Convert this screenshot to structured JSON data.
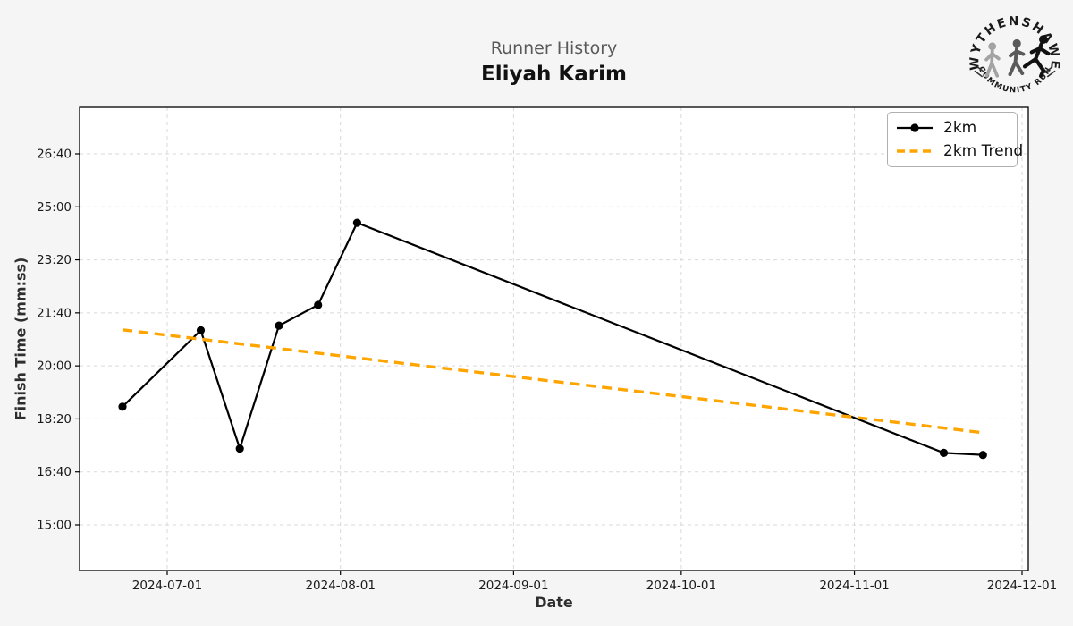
{
  "header": {
    "title": "Runner History",
    "subtitle": "Eliyah Karim"
  },
  "logo": {
    "top_text": "WYTHENSHAWE",
    "bottom_text": "COMMUNITY RUN"
  },
  "colors": {
    "figure_background": "#f5f5f5",
    "plot_background": "#ffffff",
    "gridline": "#d9d9d9",
    "axis": "#000000",
    "series_2km": "#000000",
    "trend": "#FFA500",
    "title_gray": "#595959",
    "text_dark": "#111111"
  },
  "chart_data": {
    "type": "line",
    "title": "Runner History",
    "subtitle": "Eliyah Karim",
    "xlabel": "Date",
    "ylabel": "Finish Time (mm:ss)",
    "grid": true,
    "legend_position": "upper-right",
    "x_ticks": [
      "2024-07-01",
      "2024-08-01",
      "2024-09-01",
      "2024-10-01",
      "2024-11-01",
      "2024-12-01"
    ],
    "y_ticks": [
      "26:40",
      "25:00",
      "23:20",
      "21:40",
      "20:00",
      "18:20",
      "16:40",
      "15:00"
    ],
    "x_range": [
      "2024-06-15",
      "2024-12-02"
    ],
    "y_range_mmss": [
      "13:35",
      "28:07"
    ],
    "series": [
      {
        "name": "2km",
        "color": "#000000",
        "line_style": "solid",
        "marker": "circle",
        "x": [
          "2024-06-23",
          "2024-07-07",
          "2024-07-14",
          "2024-07-21",
          "2024-07-28",
          "2024-08-04",
          "2024-11-17",
          "2024-11-24"
        ],
        "y": [
          "18:43",
          "21:07",
          "17:24",
          "21:16",
          "21:55",
          "24:30",
          "17:16",
          "17:12"
        ]
      },
      {
        "name": "2km Trend",
        "color": "#FFA500",
        "line_style": "dashed",
        "marker": "none",
        "x": [
          "2024-06-23",
          "2024-11-24"
        ],
        "y": [
          "21:08",
          "17:54"
        ]
      }
    ]
  }
}
